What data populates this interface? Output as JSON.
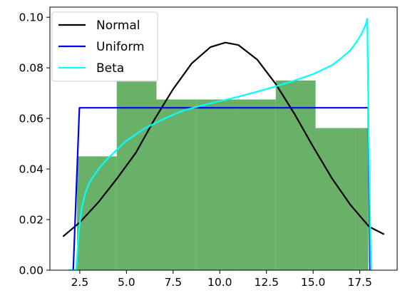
{
  "chart_data": {
    "type": "bar",
    "title": "",
    "xlabel": "",
    "ylabel": "",
    "xlim": [
      0.9,
      19.5
    ],
    "ylim": [
      0,
      0.104
    ],
    "x_ticks": [
      2.5,
      5.0,
      7.5,
      10.0,
      12.5,
      15.0,
      17.5
    ],
    "x_tick_labels": [
      "2.5",
      "5.0",
      "7.5",
      "10.0",
      "12.5",
      "15.0",
      "17.5"
    ],
    "y_ticks": [
      0.0,
      0.02,
      0.04,
      0.06,
      0.08,
      0.1
    ],
    "y_tick_labels": [
      "0.00",
      "0.02",
      "0.04",
      "0.06",
      "0.08",
      "0.10"
    ],
    "grid": false,
    "legend_placement": "top-left",
    "histogram": {
      "color": "#69b168",
      "bins": [
        {
          "x0": 2.35,
          "x1": 4.48,
          "value": 0.045
        },
        {
          "x0": 4.48,
          "x1": 6.61,
          "value": 0.075
        },
        {
          "x0": 6.61,
          "x1": 8.74,
          "value": 0.0675
        },
        {
          "x0": 8.74,
          "x1": 10.87,
          "value": 0.0675
        },
        {
          "x0": 10.87,
          "x1": 13.0,
          "value": 0.0675
        },
        {
          "x0": 13.0,
          "x1": 15.13,
          "value": 0.075
        },
        {
          "x0": 15.13,
          "x1": 17.26,
          "value": 0.0562
        },
        {
          "x0": 17.26,
          "x1": 17.96,
          "value": 0.0562
        }
      ]
    },
    "series": [
      {
        "name": "Normal",
        "color": "#000000",
        "x": [
          1.6,
          2.5,
          3.5,
          4.5,
          5.5,
          6.5,
          7.5,
          8.5,
          9.5,
          10.3,
          11,
          12,
          13,
          14,
          15,
          16,
          17,
          18,
          18.8
        ],
        "y": [
          0.0133,
          0.0189,
          0.0269,
          0.0363,
          0.0464,
          0.0596,
          0.0716,
          0.0818,
          0.0882,
          0.09,
          0.089,
          0.0833,
          0.0736,
          0.0618,
          0.0488,
          0.0364,
          0.0258,
          0.0172,
          0.0142
        ]
      },
      {
        "name": "Uniform",
        "color": "#0000ee",
        "x": [
          2.15,
          2.48,
          17.95,
          18.05
        ],
        "y": [
          0.0,
          0.0642,
          0.0642,
          0.0
        ]
      },
      {
        "name": "Beta",
        "color": "#00ffff",
        "x": [
          1.9,
          2.3,
          2.45,
          2.6,
          2.8,
          3.0,
          3.5,
          4.0,
          5.0,
          6.0,
          7.0,
          8.0,
          9.0,
          10.0,
          11.0,
          12.0,
          13.0,
          14.0,
          15.0,
          16.0,
          16.5,
          17.0,
          17.3,
          17.6,
          17.8,
          17.9,
          17.98,
          18.1
        ],
        "y": [
          0.0,
          0.0,
          0.0155,
          0.0245,
          0.0305,
          0.0345,
          0.04,
          0.0442,
          0.0512,
          0.0562,
          0.0598,
          0.063,
          0.0651,
          0.0668,
          0.0686,
          0.0706,
          0.0727,
          0.075,
          0.0775,
          0.081,
          0.0838,
          0.087,
          0.09,
          0.0935,
          0.0968,
          0.0994,
          0.05,
          0.0
        ]
      }
    ]
  }
}
